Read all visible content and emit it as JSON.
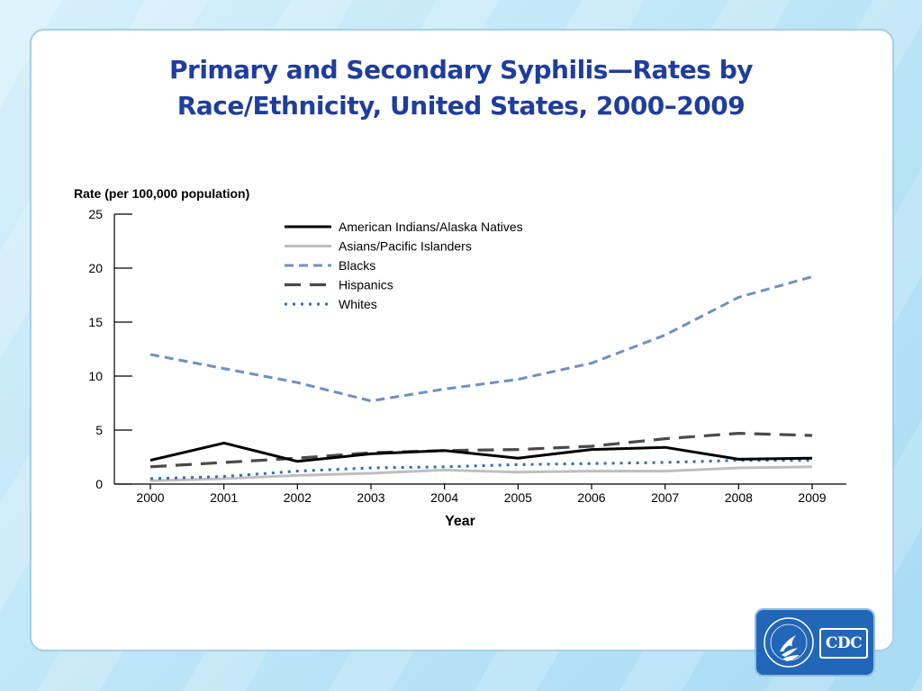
{
  "slide": {
    "title_line1": "Primary and Secondary Syphilis—Rates by",
    "title_line2": "Race/Ethnicity, United States, 2000–2009"
  },
  "logo": {
    "text": "CDC"
  },
  "colors": {
    "title": "#1f3d9c",
    "american_indians": "#000000",
    "asians": "#bfbfbf",
    "blacks": "#6f90c3",
    "hispanics": "#4a4a4a",
    "whites": "#2c6fb5"
  },
  "chart_data": {
    "type": "line",
    "title": "",
    "ylabel": "Rate (per 100,000 population)",
    "xlabel": "Year",
    "x": [
      "2000",
      "2001",
      "2002",
      "2003",
      "2004",
      "2005",
      "2006",
      "2007",
      "2008",
      "2009"
    ],
    "ylim": [
      0,
      25
    ],
    "yticks": [
      0,
      5,
      10,
      15,
      20,
      25
    ],
    "grid": false,
    "legend_position": "top-center",
    "series": [
      {
        "name": "American Indians/Alaska Natives",
        "style": "solid",
        "color": "#000000",
        "values": [
          2.2,
          3.8,
          2.1,
          2.8,
          3.1,
          2.4,
          3.2,
          3.4,
          2.3,
          2.4
        ]
      },
      {
        "name": "Asians/Pacific Islanders",
        "style": "solid-light",
        "color": "#bfbfbf",
        "values": [
          0.3,
          0.5,
          0.8,
          1.0,
          1.3,
          1.1,
          1.2,
          1.2,
          1.5,
          1.6
        ]
      },
      {
        "name": "Blacks",
        "style": "dashed",
        "color": "#6f90c3",
        "values": [
          12.0,
          10.7,
          9.4,
          7.7,
          8.8,
          9.7,
          11.2,
          13.8,
          17.3,
          19.2
        ]
      },
      {
        "name": "Hispanics",
        "style": "long-dashed",
        "color": "#4a4a4a",
        "values": [
          1.6,
          2.0,
          2.4,
          2.9,
          3.1,
          3.2,
          3.5,
          4.2,
          4.7,
          4.5
        ]
      },
      {
        "name": "Whites",
        "style": "dotted",
        "color": "#2c6fb5",
        "values": [
          0.5,
          0.7,
          1.2,
          1.5,
          1.6,
          1.8,
          1.9,
          2.0,
          2.2,
          2.2
        ]
      }
    ]
  }
}
